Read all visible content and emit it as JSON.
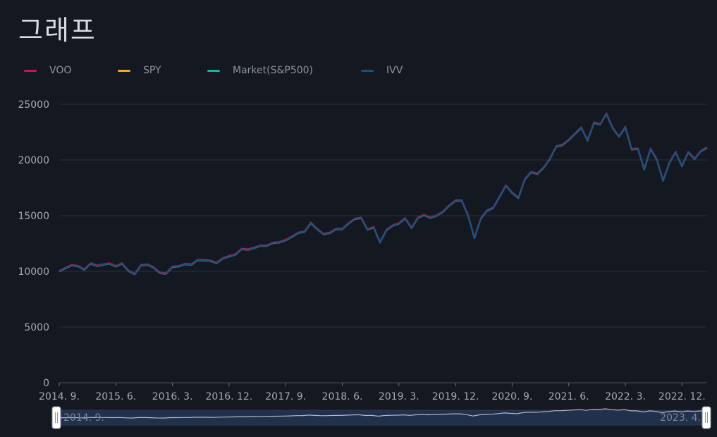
{
  "page": {
    "title": "그래프"
  },
  "chart_data": {
    "type": "line",
    "title": "그래프",
    "xlabel": "",
    "ylabel": "",
    "ylim": [
      0,
      25000
    ],
    "yticks": [
      0,
      5000,
      10000,
      15000,
      20000,
      25000
    ],
    "x_tick_labels": [
      "2014. 9.",
      "2015. 6.",
      "2016. 3.",
      "2016. 12.",
      "2017. 9.",
      "2018. 6.",
      "2019. 3.",
      "2019. 12.",
      "2020. 9.",
      "2021. 6.",
      "2022. 3.",
      "2022. 12."
    ],
    "x_start": "2014-09",
    "grid": "horizontal",
    "legend_position": "top",
    "series": [
      {
        "name": "VOO",
        "color": "#c2185b"
      },
      {
        "name": "SPY",
        "color": "#f5a623"
      },
      {
        "name": "Market(S&P500)",
        "color": "#17b3a3"
      },
      {
        "name": "IVV",
        "color": "#1c4e80"
      }
    ],
    "values": [
      10000,
      10300,
      10550,
      10450,
      10150,
      10700,
      10500,
      10600,
      10700,
      10450,
      10700,
      10050,
      9750,
      10550,
      10600,
      10350,
      9850,
      9800,
      10400,
      10450,
      10650,
      10600,
      11000,
      11000,
      10950,
      10750,
      11150,
      11350,
      11500,
      12000,
      11950,
      12100,
      12300,
      12300,
      12550,
      12600,
      12800,
      13100,
      13450,
      13550,
      14350,
      13800,
      13350,
      13450,
      13800,
      13800,
      14300,
      14700,
      14800,
      13750,
      13950,
      12600,
      13700,
      14100,
      14300,
      14750,
      13900,
      14800,
      15050,
      14800,
      15000,
      15350,
      15900,
      16350,
      16350,
      15000,
      13000,
      14700,
      15450,
      15700,
      16700,
      17700,
      17050,
      16600,
      18250,
      18900,
      18750,
      19300,
      20100,
      21200,
      21350,
      21800,
      22350,
      22900,
      21750,
      23350,
      23200,
      24150,
      22850,
      22100,
      22950,
      20950,
      21000,
      19150,
      21000,
      20050,
      18150,
      19750,
      20700,
      19450,
      20700,
      20100,
      20800,
      21100
    ],
    "navigator": {
      "start_label": "2014. 9.",
      "end_label": "2023. 4."
    }
  }
}
